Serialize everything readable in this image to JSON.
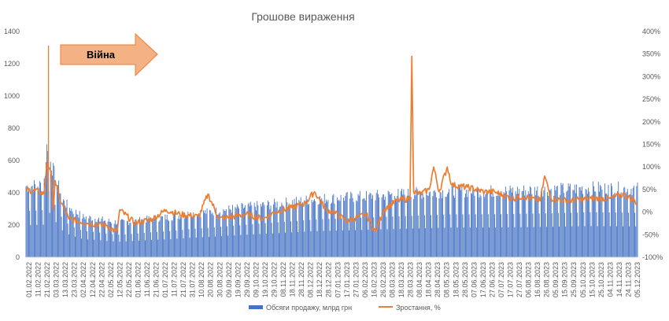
{
  "chart_data": {
    "type": "bar+line",
    "title": "Грошове вираження",
    "y_left": {
      "ylim": [
        0,
        1400
      ],
      "ticks": [
        "0",
        "200",
        "400",
        "600",
        "800",
        "1000",
        "1200",
        "1400"
      ]
    },
    "y_right": {
      "ylim": [
        -100,
        400
      ],
      "ticks": [
        "-100%",
        "-50%",
        "0%",
        "50%",
        "100%",
        "150%",
        "200%",
        "250%",
        "300%",
        "350%",
        "400%"
      ]
    },
    "x_range": [
      "2022-02-01",
      "2023-12-05"
    ],
    "x_ticks": [
      "01.02.2022",
      "11.02.2022",
      "21.02.2022",
      "03.03.2022",
      "13.03.2022",
      "23.03.2022",
      "02.04.2022",
      "12.04.2022",
      "22.04.2022",
      "02.05.2022",
      "12.05.2022",
      "22.05.2022",
      "01.06.2022",
      "11.06.2022",
      "21.06.2022",
      "01.07.2022",
      "11.07.2022",
      "21.07.2022",
      "31.07.2022",
      "10.08.2022",
      "20.08.2022",
      "30.08.2022",
      "09.09.2022",
      "19.09.2022",
      "29.09.2022",
      "09.10.2022",
      "19.10.2022",
      "29.10.2022",
      "08.11.2022",
      "18.11.2022",
      "28.11.2022",
      "08.12.2022",
      "18.12.2022",
      "28.12.2022",
      "07.01.2023",
      "17.01.2023",
      "27.01.2023",
      "06.02.2023",
      "16.02.2023",
      "26.02.2023",
      "08.03.2023",
      "18.03.2023",
      "28.03.2023",
      "08.04.2023",
      "18.04.2023",
      "28.04.2023",
      "08.05.2023",
      "18.05.2023",
      "28.05.2023",
      "07.06.2023",
      "17.06.2023",
      "27.06.2023",
      "07.07.2023",
      "17.07.2023",
      "27.07.2023",
      "06.08.2023",
      "16.08.2023",
      "26.08.2023",
      "05.09.2023",
      "15.09.2023",
      "25.09.2023",
      "05.10.2023",
      "15.10.2023",
      "25.10.2023",
      "04.11.2023",
      "14.11.2023",
      "24.11.2023",
      "05.12.2023"
    ],
    "series": [
      {
        "name": "Обсяги продажу, млрд грн",
        "kind": "bar",
        "axis": "left",
        "color": "#4472C4",
        "weekday_levels": [
          [
            "2022-02-01",
            440
          ],
          [
            "2022-02-20",
            450
          ],
          [
            "2022-02-25",
            650
          ],
          [
            "2022-03-05",
            500
          ],
          [
            "2022-03-15",
            340
          ],
          [
            "2022-03-25",
            290
          ],
          [
            "2022-04-05",
            250
          ],
          [
            "2022-04-20",
            240
          ],
          [
            "2022-05-01",
            225
          ],
          [
            "2022-05-15",
            215
          ],
          [
            "2022-06-01",
            225
          ],
          [
            "2022-06-20",
            240
          ],
          [
            "2022-07-10",
            250
          ],
          [
            "2022-08-01",
            270
          ],
          [
            "2022-08-20",
            280
          ],
          [
            "2022-09-15",
            300
          ],
          [
            "2022-10-15",
            320
          ],
          [
            "2022-11-15",
            340
          ],
          [
            "2022-12-15",
            360
          ],
          [
            "2023-01-15",
            370
          ],
          [
            "2023-02-15",
            380
          ],
          [
            "2023-03-15",
            390
          ],
          [
            "2023-04-15",
            400
          ],
          [
            "2023-05-15",
            410
          ],
          [
            "2023-07-01",
            410
          ],
          [
            "2023-09-01",
            420
          ],
          [
            "2023-10-15",
            430
          ],
          [
            "2023-12-05",
            425
          ]
        ],
        "spikes": [
          [
            "2022-02-24",
            700
          ]
        ]
      },
      {
        "name": "Зростання, %",
        "kind": "line",
        "axis": "right",
        "color": "#ED7D31",
        "points": [
          [
            "2022-02-01",
            50
          ],
          [
            "2022-02-15",
            45
          ],
          [
            "2022-02-21",
            40
          ],
          [
            "2022-02-24",
            110
          ],
          [
            "2022-03-01",
            80
          ],
          [
            "2022-03-03",
            5
          ],
          [
            "2022-03-05",
            70
          ],
          [
            "2022-03-10",
            30
          ],
          [
            "2022-03-20",
            -15
          ],
          [
            "2022-04-10",
            -25
          ],
          [
            "2022-05-01",
            -30
          ],
          [
            "2022-05-12",
            -45
          ],
          [
            "2022-05-15",
            5
          ],
          [
            "2022-06-01",
            -25
          ],
          [
            "2022-06-20",
            -15
          ],
          [
            "2022-07-05",
            5
          ],
          [
            "2022-07-20",
            -5
          ],
          [
            "2022-08-10",
            -10
          ],
          [
            "2022-08-20",
            40
          ],
          [
            "2022-09-01",
            -15
          ],
          [
            "2022-10-01",
            -5
          ],
          [
            "2022-10-20",
            -15
          ],
          [
            "2022-11-01",
            0
          ],
          [
            "2022-11-20",
            10
          ],
          [
            "2022-12-05",
            20
          ],
          [
            "2022-12-15",
            45
          ],
          [
            "2022-12-28",
            5
          ],
          [
            "2023-01-05",
            0
          ],
          [
            "2023-01-20",
            -20
          ],
          [
            "2023-02-10",
            -5
          ],
          [
            "2023-02-20",
            -45
          ],
          [
            "2023-03-01",
            5
          ],
          [
            "2023-03-15",
            25
          ],
          [
            "2023-03-30",
            30
          ],
          [
            "2023-04-01",
            345
          ],
          [
            "2023-04-03",
            45
          ],
          [
            "2023-04-10",
            40
          ],
          [
            "2023-04-20",
            50
          ],
          [
            "2023-04-25",
            100
          ],
          [
            "2023-05-01",
            45
          ],
          [
            "2023-05-10",
            100
          ],
          [
            "2023-05-15",
            60
          ],
          [
            "2023-06-01",
            55
          ],
          [
            "2023-06-20",
            45
          ],
          [
            "2023-07-01",
            45
          ],
          [
            "2023-07-20",
            30
          ],
          [
            "2023-08-01",
            35
          ],
          [
            "2023-08-20",
            25
          ],
          [
            "2023-08-25",
            80
          ],
          [
            "2023-09-01",
            30
          ],
          [
            "2023-09-20",
            25
          ],
          [
            "2023-10-15",
            30
          ],
          [
            "2023-11-05",
            30
          ],
          [
            "2023-11-20",
            40
          ],
          [
            "2023-12-05",
            20
          ]
        ]
      }
    ],
    "legend_position": "bottom-center",
    "grid": false,
    "annotation": {
      "text": "Війна",
      "at": "2022-02-24",
      "shape": "arrow-right",
      "marker_color": "#ED7D31"
    }
  }
}
